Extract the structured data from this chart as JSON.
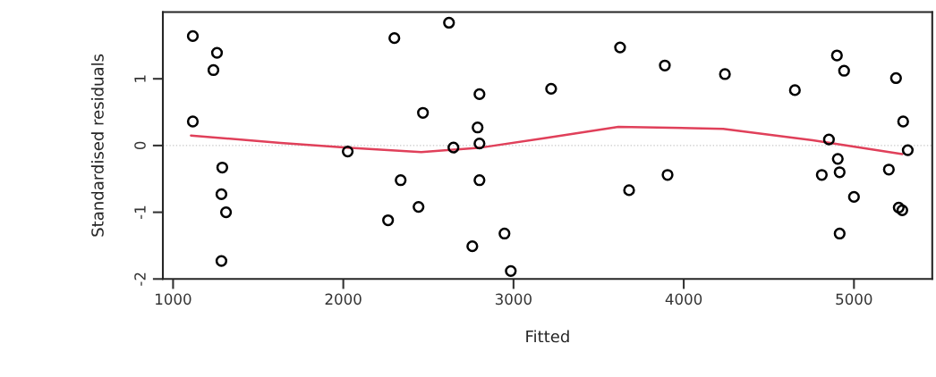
{
  "chart_data": {
    "type": "scatter",
    "xlabel": "Fitted",
    "ylabel": "Standardised residuals",
    "xlim": [
      940,
      5460
    ],
    "ylim": [
      -2,
      2
    ],
    "xticks": [
      1000,
      2000,
      3000,
      4000,
      5000
    ],
    "yticks": [
      -2,
      -1,
      0,
      1
    ],
    "grid": false,
    "legend": false,
    "marker": "circle",
    "series": [
      {
        "color": "#000000",
        "x": [
          1116,
          1258,
          1237,
          1116,
          1289,
          1284,
          1311,
          1284,
          2026,
          2300,
          2621,
          2337,
          2468,
          2263,
          2442,
          2800,
          2789,
          2800,
          2647,
          2800,
          2758,
          2947,
          2984,
          3221,
          3626,
          3889,
          3679,
          3905,
          4242,
          4653,
          4900,
          4942,
          5247,
          5289,
          4853,
          5316,
          4905,
          4811,
          4916,
          5205,
          5000,
          5263,
          5284,
          4916
        ],
        "values": [
          1.64,
          1.39,
          1.13,
          0.36,
          -0.33,
          -0.73,
          -1.0,
          -1.73,
          -0.09,
          1.61,
          1.84,
          -0.52,
          0.49,
          -1.12,
          -0.92,
          0.77,
          0.27,
          0.03,
          -0.03,
          -0.52,
          -1.51,
          -1.32,
          -1.88,
          0.85,
          1.47,
          1.2,
          -0.67,
          -0.44,
          1.07,
          0.83,
          1.35,
          1.12,
          1.01,
          0.36,
          0.09,
          -0.07,
          -0.2,
          -0.44,
          -0.4,
          -0.36,
          -0.77,
          -0.93,
          -0.97,
          -1.32
        ]
      },
      {
        "type": "line",
        "color": "#e0405a",
        "marker": "none",
        "line_style": "solid",
        "x": [
          1105,
          1632,
          2021,
          2458,
          2811,
          3179,
          3616,
          4232,
          4758,
          5284
        ],
        "values": [
          0.15,
          0.04,
          -0.03,
          -0.1,
          -0.03,
          0.11,
          0.28,
          0.25,
          0.08,
          -0.13
        ]
      }
    ],
    "ref_lines": [
      {
        "axis": "y",
        "value": 0,
        "color": "#c8c8c8",
        "line_style": "dotted"
      }
    ]
  }
}
